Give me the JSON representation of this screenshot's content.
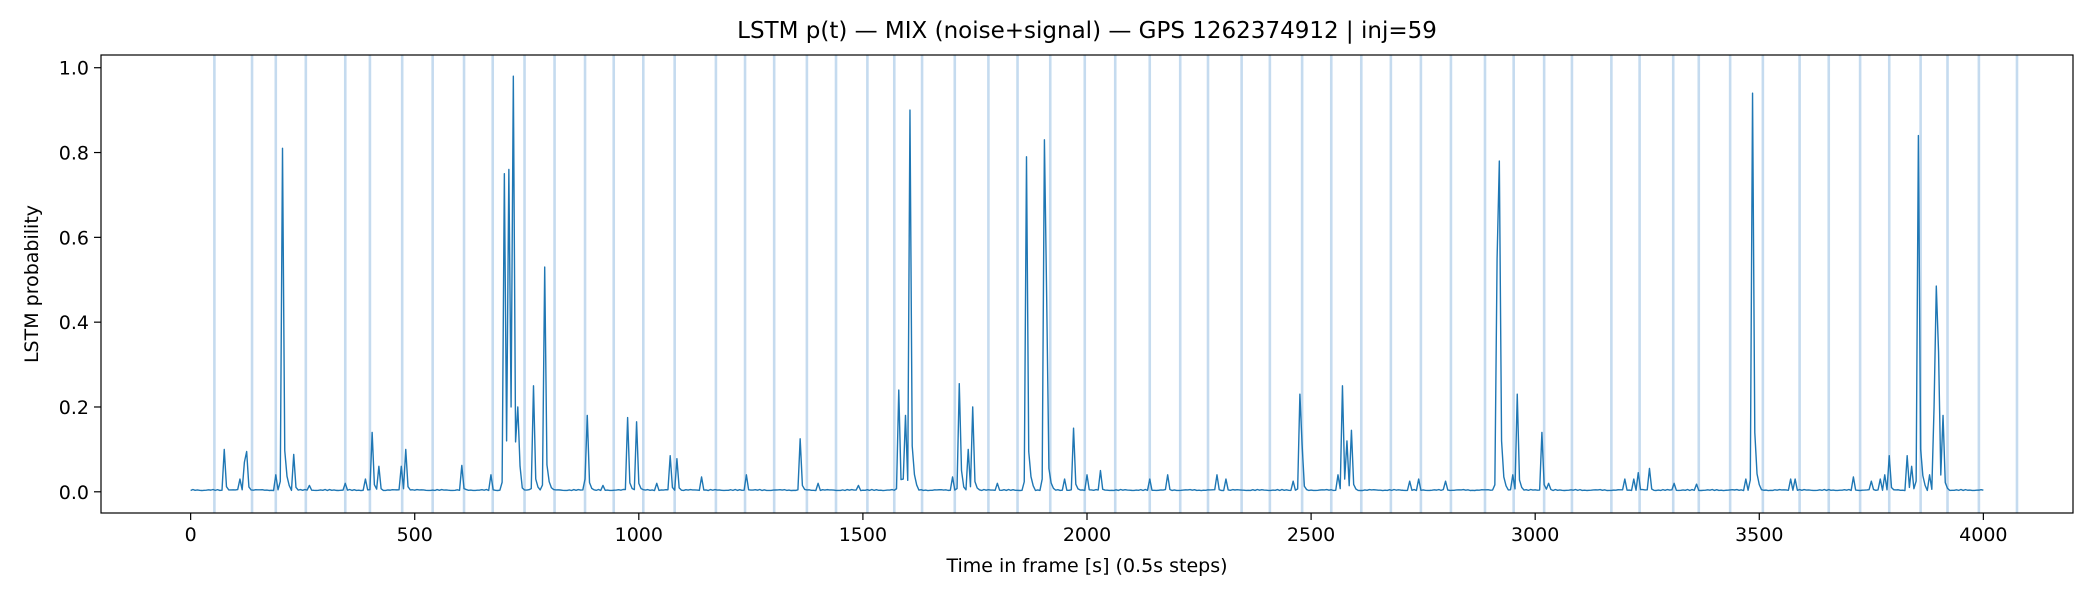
{
  "chart_data": {
    "type": "line",
    "title": "LSTM p(t) — MIX (noise+signal) — GPS 1262374912 | inj=59",
    "xlabel": "Time in frame [s] (0.5s steps)",
    "ylabel": "LSTM probability",
    "xlim": [
      -200,
      4200
    ],
    "ylim": [
      -0.05,
      1.03
    ],
    "xticks": [
      0,
      500,
      1000,
      1500,
      2000,
      2500,
      3000,
      3500,
      4000
    ],
    "yticks": [
      0.0,
      0.2,
      0.4,
      0.6,
      0.8,
      1.0
    ],
    "xtick_labels": [
      "0",
      "500",
      "1000",
      "1500",
      "2000",
      "2500",
      "3000",
      "3500",
      "4000"
    ],
    "ytick_labels": [
      "0.0",
      "0.2",
      "0.4",
      "0.6",
      "0.8",
      "1.0"
    ],
    "grid": false,
    "legend": "none",
    "colors": {
      "line": "#1f77b4",
      "injection_band": "#a6c8e6"
    },
    "injection_times": [
      53,
      137,
      190,
      257,
      345,
      400,
      472,
      540,
      610,
      674,
      745,
      812,
      880,
      944,
      1010,
      1080,
      1172,
      1237,
      1302,
      1375,
      1440,
      1510,
      1570,
      1632,
      1705,
      1780,
      1845,
      1918,
      1995,
      2063,
      2140,
      2208,
      2270,
      2345,
      2408,
      2480,
      2545,
      2612,
      2678,
      2745,
      2812,
      2888,
      2952,
      3020,
      3082,
      3170,
      3233,
      3308,
      3365,
      3435,
      3508,
      3590,
      3655,
      3725,
      3790,
      3860,
      3920,
      3990,
      4075
    ],
    "baseline": 0.003,
    "spikes": [
      {
        "t": 75,
        "p": 0.1
      },
      {
        "t": 110,
        "p": 0.03
      },
      {
        "t": 118,
        "p": 0.07
      },
      {
        "t": 123,
        "p": 0.095
      },
      {
        "t": 190,
        "p": 0.04
      },
      {
        "t": 207,
        "p": 0.81
      },
      {
        "t": 232,
        "p": 0.088
      },
      {
        "t": 265,
        "p": 0.015
      },
      {
        "t": 345,
        "p": 0.02
      },
      {
        "t": 390,
        "p": 0.03
      },
      {
        "t": 407,
        "p": 0.14
      },
      {
        "t": 420,
        "p": 0.06
      },
      {
        "t": 470,
        "p": 0.06
      },
      {
        "t": 480,
        "p": 0.1
      },
      {
        "t": 607,
        "p": 0.062
      },
      {
        "t": 670,
        "p": 0.04
      },
      {
        "t": 700,
        "p": 0.75
      },
      {
        "t": 705,
        "p": 0.12
      },
      {
        "t": 710,
        "p": 0.76
      },
      {
        "t": 716,
        "p": 0.2
      },
      {
        "t": 722,
        "p": 0.98
      },
      {
        "t": 728,
        "p": 0.2
      },
      {
        "t": 735,
        "p": 0.06
      },
      {
        "t": 765,
        "p": 0.25
      },
      {
        "t": 790,
        "p": 0.53
      },
      {
        "t": 880,
        "p": 0.03
      },
      {
        "t": 885,
        "p": 0.18
      },
      {
        "t": 920,
        "p": 0.015
      },
      {
        "t": 975,
        "p": 0.175
      },
      {
        "t": 995,
        "p": 0.165
      },
      {
        "t": 1040,
        "p": 0.02
      },
      {
        "t": 1070,
        "p": 0.085
      },
      {
        "t": 1085,
        "p": 0.078
      },
      {
        "t": 1140,
        "p": 0.035
      },
      {
        "t": 1240,
        "p": 0.04
      },
      {
        "t": 1360,
        "p": 0.125
      },
      {
        "t": 1400,
        "p": 0.02
      },
      {
        "t": 1490,
        "p": 0.015
      },
      {
        "t": 1580,
        "p": 0.24
      },
      {
        "t": 1590,
        "p": 0.03
      },
      {
        "t": 1597,
        "p": 0.18
      },
      {
        "t": 1603,
        "p": 0.9
      },
      {
        "t": 1700,
        "p": 0.035
      },
      {
        "t": 1715,
        "p": 0.255
      },
      {
        "t": 1722,
        "p": 0.05
      },
      {
        "t": 1735,
        "p": 0.1
      },
      {
        "t": 1745,
        "p": 0.2
      },
      {
        "t": 1800,
        "p": 0.02
      },
      {
        "t": 1865,
        "p": 0.79
      },
      {
        "t": 1900,
        "p": 0.03
      },
      {
        "t": 1905,
        "p": 0.83
      },
      {
        "t": 1910,
        "p": 0.46
      },
      {
        "t": 1950,
        "p": 0.03
      },
      {
        "t": 1970,
        "p": 0.15
      },
      {
        "t": 2000,
        "p": 0.04
      },
      {
        "t": 2030,
        "p": 0.05
      },
      {
        "t": 2140,
        "p": 0.03
      },
      {
        "t": 2180,
        "p": 0.04
      },
      {
        "t": 2290,
        "p": 0.04
      },
      {
        "t": 2310,
        "p": 0.03
      },
      {
        "t": 2460,
        "p": 0.025
      },
      {
        "t": 2475,
        "p": 0.23
      },
      {
        "t": 2480,
        "p": 0.11
      },
      {
        "t": 2560,
        "p": 0.04
      },
      {
        "t": 2570,
        "p": 0.25
      },
      {
        "t": 2580,
        "p": 0.12
      },
      {
        "t": 2590,
        "p": 0.145
      },
      {
        "t": 2720,
        "p": 0.025
      },
      {
        "t": 2740,
        "p": 0.03
      },
      {
        "t": 2800,
        "p": 0.025
      },
      {
        "t": 2915,
        "p": 0.55
      },
      {
        "t": 2920,
        "p": 0.78
      },
      {
        "t": 2925,
        "p": 0.12
      },
      {
        "t": 2950,
        "p": 0.04
      },
      {
        "t": 2960,
        "p": 0.23
      },
      {
        "t": 3015,
        "p": 0.14
      },
      {
        "t": 3030,
        "p": 0.02
      },
      {
        "t": 3200,
        "p": 0.03
      },
      {
        "t": 3220,
        "p": 0.03
      },
      {
        "t": 3230,
        "p": 0.045
      },
      {
        "t": 3255,
        "p": 0.055
      },
      {
        "t": 3310,
        "p": 0.02
      },
      {
        "t": 3360,
        "p": 0.018
      },
      {
        "t": 3470,
        "p": 0.03
      },
      {
        "t": 3485,
        "p": 0.94
      },
      {
        "t": 3490,
        "p": 0.14
      },
      {
        "t": 3570,
        "p": 0.03
      },
      {
        "t": 3580,
        "p": 0.03
      },
      {
        "t": 3710,
        "p": 0.035
      },
      {
        "t": 3750,
        "p": 0.025
      },
      {
        "t": 3770,
        "p": 0.03
      },
      {
        "t": 3780,
        "p": 0.04
      },
      {
        "t": 3790,
        "p": 0.085
      },
      {
        "t": 3830,
        "p": 0.085
      },
      {
        "t": 3840,
        "p": 0.06
      },
      {
        "t": 3855,
        "p": 0.84
      },
      {
        "t": 3860,
        "p": 0.05
      },
      {
        "t": 3880,
        "p": 0.04
      },
      {
        "t": 3890,
        "p": 0.2
      },
      {
        "t": 3895,
        "p": 0.485
      },
      {
        "t": 3900,
        "p": 0.33
      },
      {
        "t": 3902,
        "p": 0.26
      },
      {
        "t": 3910,
        "p": 0.18
      },
      {
        "t": 3990,
        "p": 0.0
      }
    ]
  }
}
